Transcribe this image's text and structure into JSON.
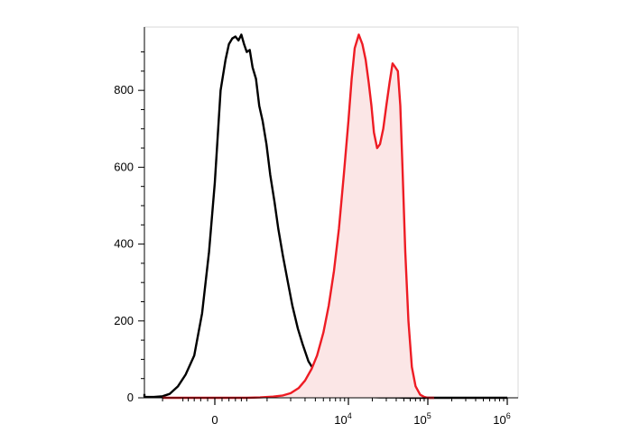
{
  "chart_data": {
    "type": "area",
    "title": "",
    "xlabel": "",
    "ylabel": "",
    "x_scale": "biexponential",
    "ylim": [
      0,
      960
    ],
    "grid": false,
    "legend": "none",
    "y_ticks": [
      {
        "value": 0,
        "label": "0"
      },
      {
        "value": 200,
        "label": "200"
      },
      {
        "value": 400,
        "label": "400"
      },
      {
        "value": 600,
        "label": "600"
      },
      {
        "value": 800,
        "label": "800"
      }
    ],
    "x_ticks": [
      {
        "value": 0,
        "base": "0",
        "exp": ""
      },
      {
        "value": 10000,
        "base": "10",
        "exp": "4"
      },
      {
        "value": 100000,
        "base": "10",
        "exp": "5"
      },
      {
        "value": 1000000,
        "base": "10",
        "exp": "6"
      }
    ],
    "series": [
      {
        "color": "#000000",
        "fill": "none",
        "x": [
          -2700,
          -2200,
          -1700,
          -1300,
          -1000,
          -800,
          -600,
          -450,
          -300,
          -180,
          -80,
          0,
          80,
          150,
          200,
          250,
          300,
          350,
          400,
          450,
          500,
          560,
          620,
          700,
          780,
          870,
          980,
          1100,
          1250,
          1400,
          1600,
          1850,
          2100,
          2450,
          2800,
          3300,
          3900,
          4600,
          5500,
          6600,
          8000,
          10000,
          13000,
          17000,
          25000,
          40000,
          60000,
          100000,
          200000,
          400000,
          1000000
        ],
        "y": [
          10,
          4,
          2,
          2,
          4,
          10,
          30,
          60,
          110,
          220,
          380,
          560,
          800,
          880,
          920,
          935,
          940,
          930,
          945,
          920,
          900,
          905,
          860,
          830,
          760,
          720,
          660,
          580,
          510,
          440,
          370,
          300,
          240,
          180,
          140,
          95,
          70,
          50,
          35,
          22,
          12,
          6,
          3,
          2,
          1,
          1,
          0,
          0,
          0,
          0,
          0
        ]
      },
      {
        "color": "#ee1c24",
        "fill": "#fbe6e6",
        "x": [
          -1000,
          -300,
          0,
          200,
          500,
          800,
          1200,
          1600,
          2000,
          2500,
          3000,
          3600,
          4200,
          5000,
          5800,
          6700,
          7700,
          8800,
          10000,
          11000,
          12000,
          13500,
          15000,
          16500,
          18000,
          19500,
          21000,
          23000,
          25000,
          27500,
          30000,
          33000,
          36000,
          39000,
          42000,
          45000,
          48000,
          52000,
          57000,
          63000,
          70000,
          80000,
          90000,
          100000,
          120000
        ],
        "y": [
          0,
          0,
          0,
          0,
          0,
          1,
          3,
          6,
          12,
          25,
          45,
          75,
          110,
          170,
          240,
          330,
          440,
          580,
          720,
          830,
          910,
          945,
          920,
          880,
          820,
          760,
          690,
          650,
          660,
          700,
          760,
          820,
          870,
          860,
          850,
          760,
          600,
          380,
          200,
          80,
          30,
          8,
          2,
          0,
          0
        ]
      }
    ]
  }
}
